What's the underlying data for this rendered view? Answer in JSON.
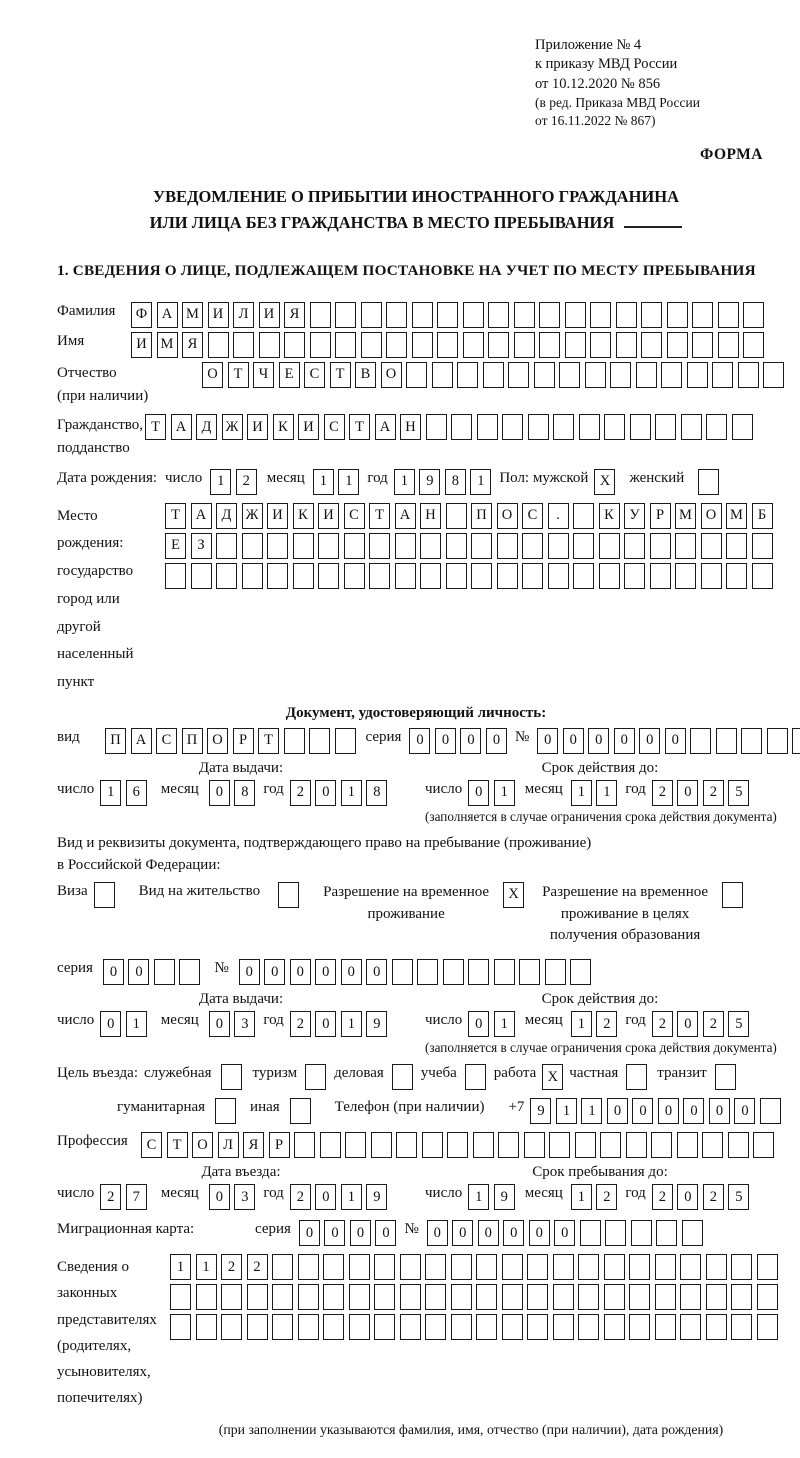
{
  "colors": {
    "ink": "#1b1b1b",
    "paper": "#ffffff"
  },
  "header": {
    "line1": "Приложение № 4",
    "line2": "к приказу МВД России",
    "line3": "от 10.12.2020 № 856",
    "line4": "(в ред. Приказа МВД России",
    "line5": "от 16.11.2022 № 867)",
    "form_label": "ФОРМА"
  },
  "title": {
    "line1": "УВЕДОМЛЕНИЕ О ПРИБЫТИИ ИНОСТРАННОГО ГРАЖДАНИНА",
    "line2": "ИЛИ ЛИЦА БЕЗ ГРАЖДАНСТВА В МЕСТО ПРЕБЫВАНИЯ"
  },
  "section1_title": "1. СВЕДЕНИЯ О ЛИЦЕ, ПОДЛЕЖАЩЕМ ПОСТАНОВКЕ НА УЧЕТ ПО МЕСТУ ПРЕБЫВАНИЯ",
  "labels": {
    "day": "число",
    "month": "месяц",
    "year": "год",
    "series": "серия",
    "number": "№",
    "expiry_note": "(заполняется в случае ограничения срока действия документа)"
  },
  "fields": {
    "surname": {
      "label": "Фамилия",
      "total": 25,
      "values": [
        "Ф",
        "А",
        "М",
        "И",
        "Л",
        "И",
        "Я"
      ]
    },
    "firstname": {
      "label": "Имя",
      "total": 25,
      "values": [
        "И",
        "М",
        "Я"
      ]
    },
    "patronymic": {
      "label": "Отчество",
      "label2": "(при наличии)",
      "total": 23,
      "values": [
        "О",
        "Т",
        "Ч",
        "Е",
        "С",
        "Т",
        "В",
        "О"
      ]
    },
    "citizenship": {
      "label": "Гражданство,",
      "label2": "подданство",
      "total": 24,
      "values": [
        "Т",
        "А",
        "Д",
        "Ж",
        "И",
        "К",
        "И",
        "С",
        "Т",
        "А",
        "Н"
      ]
    },
    "birth": {
      "label": "Дата рождения:",
      "day": {
        "total": 2,
        "values": [
          "1",
          "2"
        ]
      },
      "month": {
        "total": 2,
        "values": [
          "1",
          "1"
        ]
      },
      "year": {
        "total": 4,
        "values": [
          "1",
          "9",
          "8",
          "1"
        ]
      },
      "sex_male_label": "Пол: мужской",
      "male_box": {
        "total": 1,
        "values": [
          "X"
        ]
      },
      "sex_female_label": "женский",
      "female_box": {
        "total": 1,
        "values": []
      }
    },
    "birthplace": {
      "label1": "Место рождения:",
      "label2": "государство",
      "label3": "город или другой",
      "label4": "населенный пункт",
      "row1": {
        "total": 24,
        "values": [
          "Т",
          "А",
          "Д",
          "Ж",
          "И",
          "К",
          "И",
          "С",
          "Т",
          "А",
          "Н",
          "",
          "П",
          "О",
          "С",
          ".",
          "",
          "К",
          "У",
          "Р",
          "М",
          "О",
          "М",
          "Б"
        ]
      },
      "row2": {
        "total": 24,
        "values": [
          "Е",
          "З"
        ]
      },
      "row3": {
        "total": 24,
        "values": []
      }
    },
    "identity_doc_header": "Документ, удостоверяющий личность:",
    "doc_kind": {
      "label": "вид",
      "total": 10,
      "values": [
        "П",
        "А",
        "С",
        "П",
        "О",
        "Р",
        "Т"
      ]
    },
    "doc_series": {
      "total": 4,
      "values": [
        "0",
        "0",
        "0",
        "0"
      ]
    },
    "doc_number": {
      "total": 11,
      "values": [
        "0",
        "0",
        "0",
        "0",
        "0",
        "0"
      ]
    },
    "phone_prefix": "+7",
    "phone": {
      "total": 10,
      "values": [
        "9",
        "1",
        "1",
        "0",
        "0",
        "0",
        "0",
        "0",
        "0"
      ]
    },
    "profession": {
      "label": "Профессия",
      "total": 25,
      "values": [
        "С",
        "Т",
        "О",
        "Л",
        "Я",
        "Р"
      ]
    },
    "migration_card": {
      "label": "Миграционная карта:",
      "series": {
        "total": 4,
        "values": [
          "0",
          "0",
          "0",
          "0"
        ]
      },
      "number": {
        "total": 11,
        "values": [
          "0",
          "0",
          "0",
          "0",
          "0",
          "0"
        ]
      }
    },
    "res_series": {
      "total": 4,
      "values": [
        "0",
        "0"
      ]
    },
    "res_number": {
      "total": 14,
      "values": [
        "0",
        "0",
        "0",
        "0",
        "0",
        "0"
      ]
    }
  },
  "dates": {
    "doc_issue": {
      "title": "Дата выдачи:",
      "day": {
        "total": 2,
        "values": [
          "1",
          "6"
        ]
      },
      "month": {
        "total": 2,
        "values": [
          "0",
          "8"
        ]
      },
      "year": {
        "total": 4,
        "values": [
          "2",
          "0",
          "1",
          "8"
        ]
      }
    },
    "doc_expiry": {
      "title": "Срок действия до:",
      "day": {
        "total": 2,
        "values": [
          "0",
          "1"
        ]
      },
      "month": {
        "total": 2,
        "values": [
          "1",
          "1"
        ]
      },
      "year": {
        "total": 4,
        "values": [
          "2",
          "0",
          "2",
          "5"
        ]
      }
    },
    "res_issue": {
      "title": "Дата выдачи:",
      "day": {
        "total": 2,
        "values": [
          "0",
          "1"
        ]
      },
      "month": {
        "total": 2,
        "values": [
          "0",
          "3"
        ]
      },
      "year": {
        "total": 4,
        "values": [
          "2",
          "0",
          "1",
          "9"
        ]
      }
    },
    "res_expiry": {
      "title": "Срок действия до:",
      "day": {
        "total": 2,
        "values": [
          "0",
          "1"
        ]
      },
      "month": {
        "total": 2,
        "values": [
          "1",
          "2"
        ]
      },
      "year": {
        "total": 4,
        "values": [
          "2",
          "0",
          "2",
          "5"
        ]
      }
    },
    "entry": {
      "title": "Дата въезда:",
      "day": {
        "total": 2,
        "values": [
          "2",
          "7"
        ]
      },
      "month": {
        "total": 2,
        "values": [
          "0",
          "3"
        ]
      },
      "year": {
        "total": 4,
        "values": [
          "2",
          "0",
          "1",
          "9"
        ]
      }
    },
    "stay": {
      "title": "Срок пребывания до:",
      "day": {
        "total": 2,
        "values": [
          "1",
          "9"
        ]
      },
      "month": {
        "total": 2,
        "values": [
          "1",
          "2"
        ]
      },
      "year": {
        "total": 4,
        "values": [
          "2",
          "0",
          "2",
          "5"
        ]
      }
    }
  },
  "residence": {
    "line1": "Вид и реквизиты документа, подтверждающего право на пребывание (проживание)",
    "line2": "в Российской Федерации:",
    "opt1": {
      "label": "Виза",
      "box": {
        "total": 1,
        "values": []
      }
    },
    "opt2": {
      "label": "Вид на жительство",
      "box": {
        "total": 1,
        "values": []
      }
    },
    "opt3": {
      "lines": [
        "Разрешение на временное",
        "проживание"
      ],
      "box": {
        "total": 1,
        "values": [
          "X"
        ]
      }
    },
    "opt4": {
      "lines": [
        "Разрешение на временное",
        "проживание в целях",
        "получения образования"
      ],
      "box": {
        "total": 1,
        "values": []
      }
    }
  },
  "purpose": {
    "lead": "Цель въезда:",
    "opt_business": {
      "label": "служебная",
      "box": {
        "total": 1,
        "values": []
      }
    },
    "opt_tourism": {
      "label": "туризм",
      "box": {
        "total": 1,
        "values": []
      }
    },
    "opt_commercial": {
      "label": "деловая",
      "box": {
        "total": 1,
        "values": []
      }
    },
    "opt_study": {
      "label": "учеба",
      "box": {
        "total": 1,
        "values": []
      }
    },
    "opt_work": {
      "label": "работа",
      "box": {
        "total": 1,
        "values": [
          "X"
        ]
      }
    },
    "opt_private": {
      "label": "частная",
      "box": {
        "total": 1,
        "values": []
      }
    },
    "opt_transit": {
      "label": "транзит",
      "box": {
        "total": 1,
        "values": []
      }
    },
    "opt_humanitarian": {
      "label": "гуманитарная",
      "box": {
        "total": 1,
        "values": []
      }
    },
    "opt_other": {
      "label": "иная",
      "box": {
        "total": 1,
        "values": []
      }
    },
    "phone_label": "Телефон (при наличии)"
  },
  "representatives": {
    "label1": "Сведения о",
    "label2": "законных",
    "label3": "представителях",
    "label4": "(родителях,",
    "label5": "усыновителях,",
    "label6": "попечителях)",
    "row1": {
      "total": 24,
      "values": [
        "1",
        "1",
        "2",
        "2"
      ]
    },
    "row2": {
      "total": 24,
      "values": []
    },
    "row3": {
      "total": 24,
      "values": []
    },
    "note": "(при заполнении указываются фамилия, имя, отчество (при наличии), дата рождения)"
  }
}
